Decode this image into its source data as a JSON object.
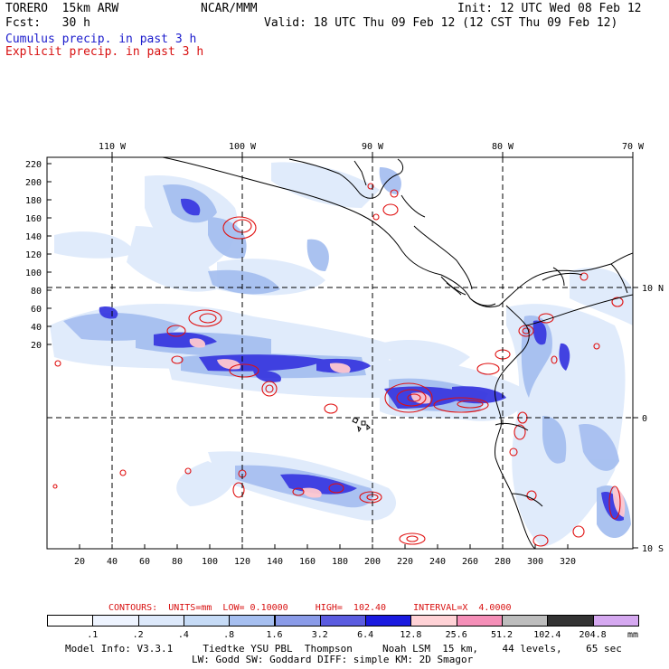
{
  "header": {
    "model": "TORERO  15km ARW",
    "org": "NCAR/MMM",
    "init": "Init: 12 UTC Wed 08 Feb 12",
    "fcst": "Fcst:   30 h",
    "valid": "Valid: 18 UTC Thu 09 Feb 12 (12 CST Thu 09 Feb 12)",
    "field1": "Cumulus precip. in past 3 h",
    "field2": "Explicit precip. in past 3 h"
  },
  "map": {
    "lon_labels": [
      "110 W",
      "100 W",
      "90 W",
      "80 W",
      "70 W"
    ],
    "lat_labels": [
      "10 N",
      "0",
      "10 S"
    ],
    "y_ticks": [
      "220",
      "200",
      "180",
      "160",
      "140",
      "120",
      "100",
      "80",
      "60",
      "40",
      "20"
    ],
    "x_ticks": [
      "20",
      "40",
      "60",
      "80",
      "100",
      "120",
      "140",
      "160",
      "180",
      "200",
      "220",
      "240",
      "260",
      "280",
      "300",
      "320"
    ]
  },
  "contours": {
    "label": "CONTOURS:  UNITS=mm  LOW= 0.10000     HIGH=  102.40     INTERVAL=X  4.0000"
  },
  "colorbar": {
    "labels": [
      ".1",
      ".2",
      ".4",
      ".8",
      "1.6",
      "3.2",
      "6.4",
      "12.8",
      "25.6",
      "51.2",
      "102.4",
      "204.8"
    ],
    "unit": "mm",
    "colors": [
      "#ffffff",
      "#eef4ff",
      "#dde9fb",
      "#c6dbf6",
      "#a6bff0",
      "#8a9be8",
      "#5b5ce0",
      "#1a1ae0",
      "#ffd2d6",
      "#f58fb8",
      "#bdbdbd",
      "#333333",
      "#d5a8f0"
    ]
  },
  "footer": {
    "line1": "Model Info: V3.3.1     Tiedtke YSU PBL  Thompson     Noah LSM  15 km,    44 levels,    65 sec",
    "line2": "LW: Godd SW: Goddard DIFF: simple KM: 2D Smagor"
  }
}
